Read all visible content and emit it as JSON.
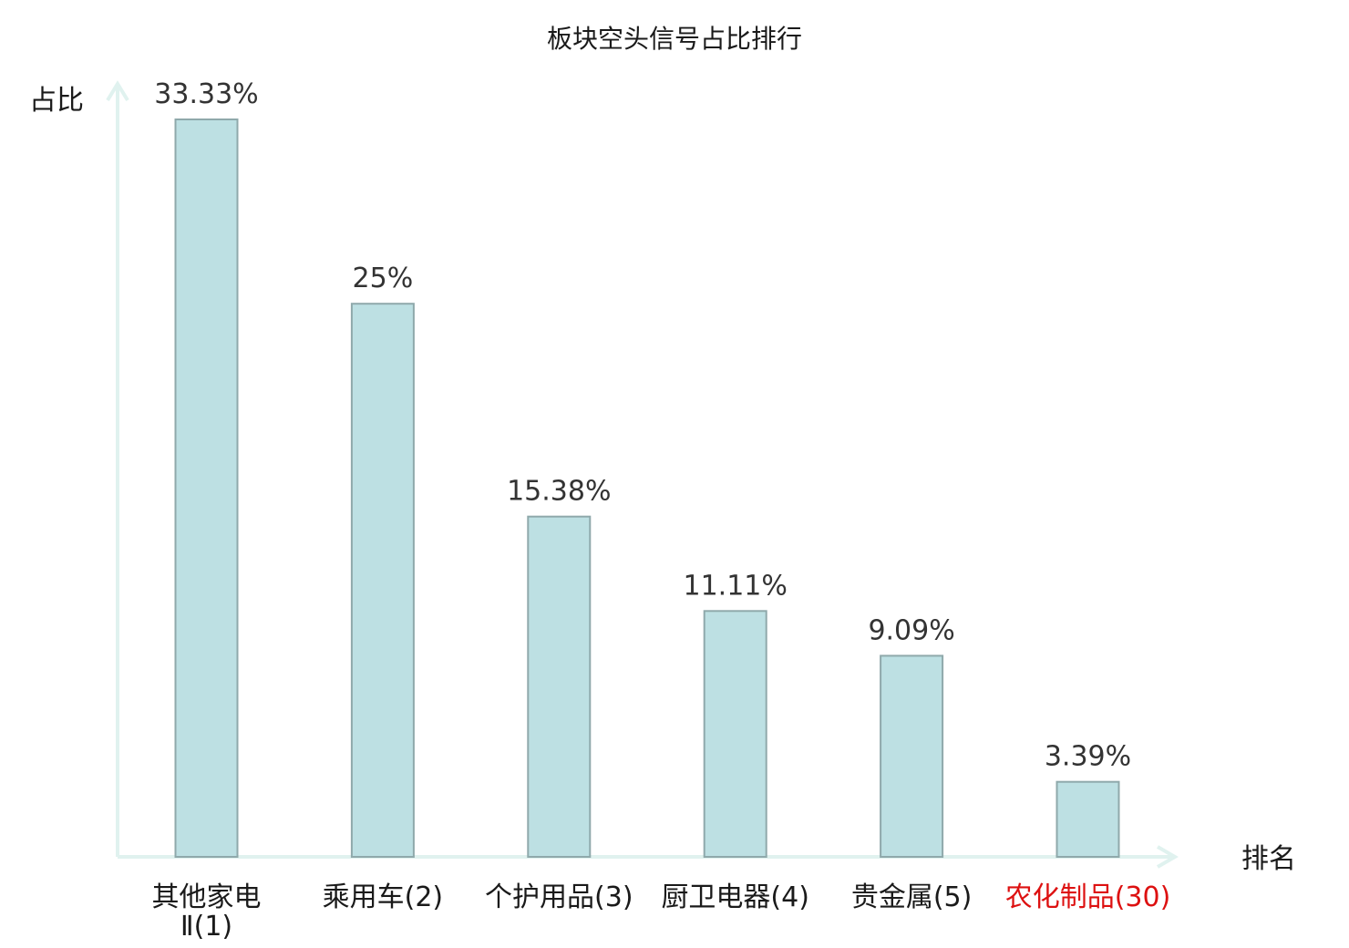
{
  "chart_data": {
    "type": "bar",
    "title": "板块空头信号占比排行",
    "ylabel": "占比",
    "xlabel": "排名",
    "ylim": [
      0,
      35
    ],
    "grid": false,
    "legend": "none",
    "categories": [
      {
        "lines": [
          "其他家电",
          "Ⅱ(1)"
        ],
        "highlight": false
      },
      {
        "lines": [
          "乘用车(2)"
        ],
        "highlight": false
      },
      {
        "lines": [
          "个护用品(3)"
        ],
        "highlight": false
      },
      {
        "lines": [
          "厨卫电器(4)"
        ],
        "highlight": false
      },
      {
        "lines": [
          "贵金属(5)"
        ],
        "highlight": false
      },
      {
        "lines": [
          "农化制品(30)"
        ],
        "highlight": true
      }
    ],
    "values": [
      33.33,
      25,
      15.38,
      11.11,
      9.09,
      3.39
    ],
    "value_labels": [
      "33.33%",
      "25%",
      "15.38%",
      "11.11%",
      "9.09%",
      "3.39%"
    ],
    "colors": {
      "bar_fill": "#bde0e3",
      "bar_stroke": "#8fa9ab",
      "axis": "#e0f2ef",
      "highlight_text": "#dd1111"
    }
  }
}
